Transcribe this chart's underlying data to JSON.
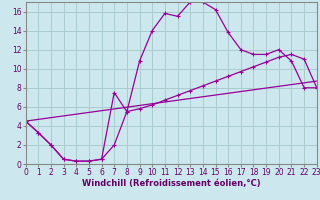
{
  "xlabel": "Windchill (Refroidissement éolien,°C)",
  "bg_color": "#cce8ee",
  "line_color": "#990099",
  "grid_color": "#aacccc",
  "xlim": [
    0,
    23
  ],
  "ylim": [
    0,
    17
  ],
  "xticks": [
    0,
    1,
    2,
    3,
    4,
    5,
    6,
    7,
    8,
    9,
    10,
    11,
    12,
    13,
    14,
    15,
    16,
    17,
    18,
    19,
    20,
    21,
    22,
    23
  ],
  "yticks": [
    0,
    2,
    4,
    6,
    8,
    10,
    12,
    14,
    16
  ],
  "line1_x": [
    0,
    1,
    2,
    3,
    4,
    5,
    6,
    7,
    8,
    9,
    10,
    11,
    12,
    13,
    14,
    15,
    16,
    17,
    18,
    19,
    20,
    21,
    22,
    23
  ],
  "line1_y": [
    4.5,
    3.3,
    2.0,
    0.5,
    0.3,
    0.3,
    0.5,
    7.5,
    5.5,
    10.8,
    14.0,
    15.8,
    15.5,
    17.0,
    17.0,
    16.2,
    13.8,
    12.0,
    11.5,
    11.5,
    12.0,
    10.8,
    8.0,
    8.0
  ],
  "line2_x": [
    0,
    1,
    2,
    3,
    4,
    5,
    6,
    7,
    8,
    9,
    10,
    11,
    12,
    13,
    14,
    15,
    16,
    17,
    18,
    19,
    20,
    21,
    22,
    23
  ],
  "line2_y": [
    4.5,
    3.3,
    2.0,
    0.5,
    0.3,
    0.3,
    0.5,
    2.0,
    5.5,
    5.8,
    6.2,
    6.7,
    7.2,
    7.7,
    8.2,
    8.7,
    9.2,
    9.7,
    10.2,
    10.7,
    11.2,
    11.5,
    11.0,
    8.0
  ],
  "line3_x": [
    0,
    23
  ],
  "line3_y": [
    4.5,
    8.7
  ],
  "marker": "+"
}
